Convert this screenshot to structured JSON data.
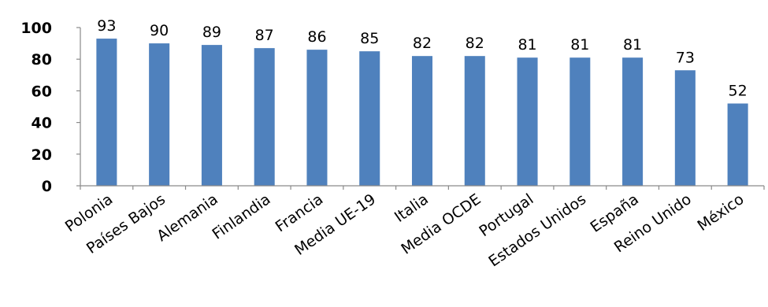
{
  "chart_data": {
    "type": "bar",
    "categories": [
      "Polonia",
      "Países Bajos",
      "Alemania",
      "Finlandia",
      "Francia",
      "Media UE-19",
      "Italia",
      "Media OCDE",
      "Portugal",
      "Estados Unidos",
      "España",
      "Reino Unido",
      "México"
    ],
    "values": [
      93,
      90,
      89,
      87,
      86,
      85,
      82,
      82,
      81,
      81,
      81,
      73,
      52
    ],
    "title": "",
    "xlabel": "",
    "ylabel": "",
    "ylim": [
      0,
      100
    ],
    "yticks": [
      0,
      20,
      40,
      60,
      80,
      100
    ],
    "bar_color": "#4F81BD",
    "grid": false,
    "legend": "none",
    "data_labels": true
  }
}
